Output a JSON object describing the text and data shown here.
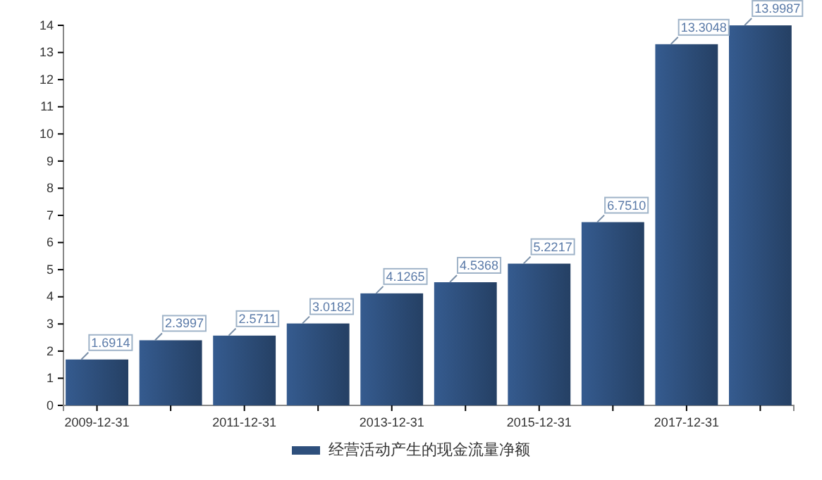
{
  "chart_data": {
    "type": "bar",
    "categories": [
      "2009-12-31",
      null,
      "2011-12-31",
      null,
      "2013-12-31",
      null,
      "2015-12-31",
      null,
      "2017-12-31",
      null
    ],
    "series": [
      {
        "name": "经营活动产生的现金流量净额",
        "color": "#2e4f7c",
        "values": [
          1.6914,
          2.3997,
          2.5711,
          3.0182,
          4.1265,
          4.5368,
          5.2217,
          6.751,
          13.3048,
          13.9987
        ],
        "value_labels": [
          "1.6914",
          "2.3997",
          "2.5711",
          "3.0182",
          "4.1265",
          "4.5368",
          "5.2217",
          "6.7510",
          "13.3048",
          "13.9987"
        ]
      }
    ],
    "ylim": [
      0,
      14
    ],
    "yticks": [
      0,
      1,
      2,
      3,
      4,
      5,
      6,
      7,
      8,
      9,
      10,
      11,
      12,
      13,
      14
    ],
    "grid": false,
    "legend": "bottom"
  }
}
